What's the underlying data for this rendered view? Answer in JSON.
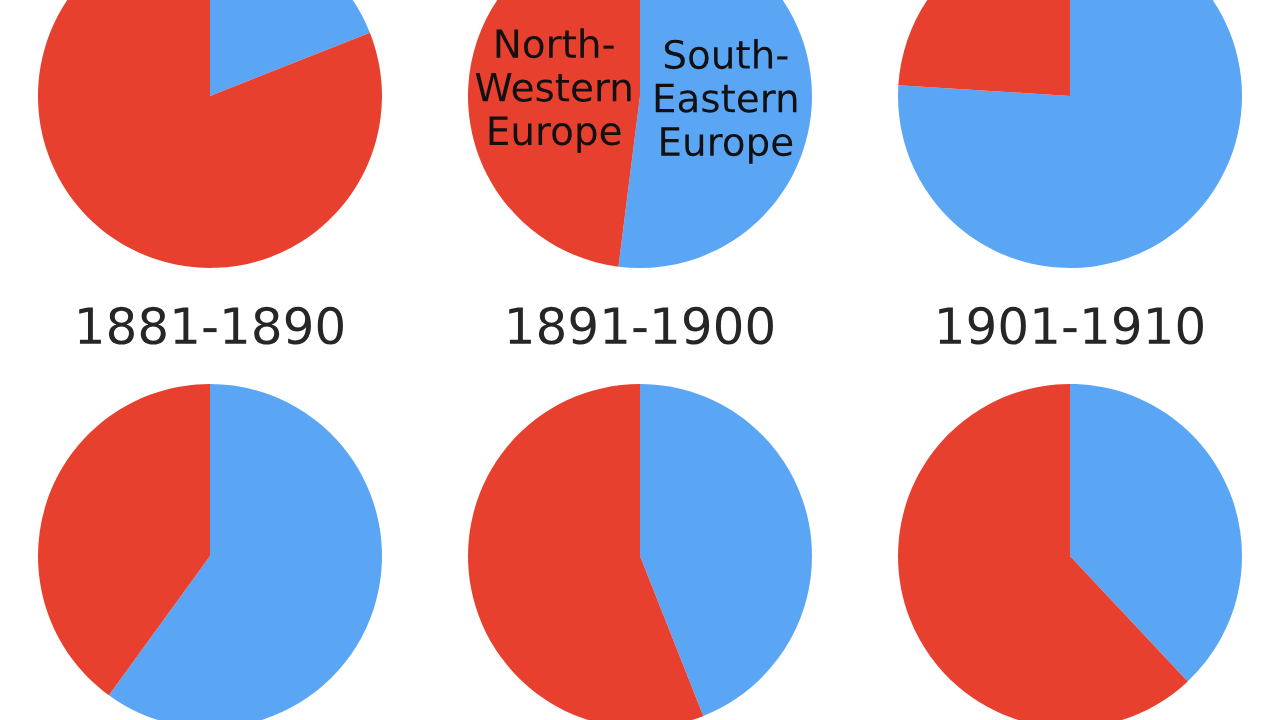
{
  "chart_data": [
    {
      "type": "pie",
      "title": "1881-1890",
      "categories": [
        null,
        null
      ],
      "values": [
        19,
        81
      ],
      "colors": [
        "#5aa6f5",
        "#e8402e"
      ]
    },
    {
      "type": "pie",
      "title": "1891-1900",
      "categories": [
        "South-\nEastern\nEurope",
        "North-\nWestern\nEurope"
      ],
      "values": [
        52,
        48
      ],
      "colors": [
        "#5aa6f5",
        "#e8402e"
      ]
    },
    {
      "type": "pie",
      "title": "1901-1910",
      "categories": [
        null,
        null
      ],
      "values": [
        76,
        24
      ],
      "colors": [
        "#5aa6f5",
        "#e8402e"
      ]
    },
    {
      "type": "pie",
      "categories": [
        null,
        null
      ],
      "values": [
        60,
        40
      ],
      "colors": [
        "#5aa6f5",
        "#e8402e"
      ]
    },
    {
      "type": "pie",
      "categories": [
        null,
        null
      ],
      "values": [
        44,
        56
      ],
      "colors": [
        "#5aa6f5",
        "#e8402e"
      ]
    },
    {
      "type": "pie",
      "categories": [
        null,
        null
      ],
      "values": [
        38,
        62
      ],
      "colors": [
        "#5aa6f5",
        "#e8402e"
      ]
    }
  ]
}
